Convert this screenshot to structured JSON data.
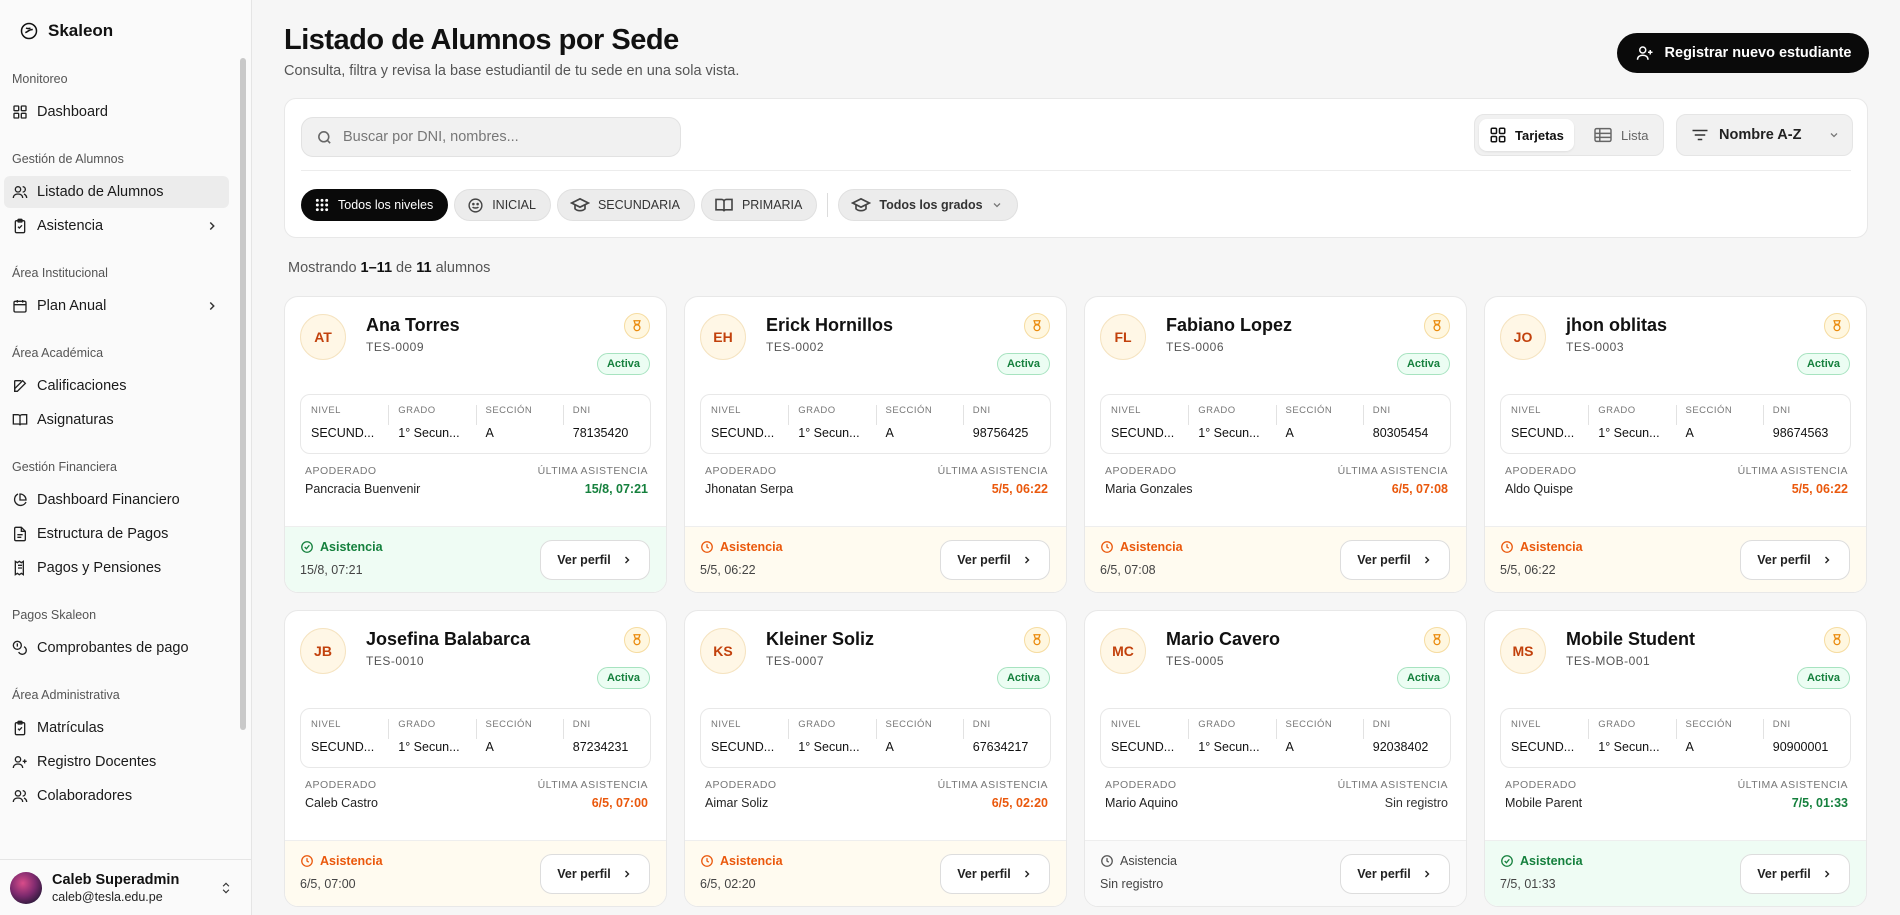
{
  "brand": {
    "name": "Skaleon"
  },
  "sidebar": {
    "groups": [
      {
        "title": "Monitoreo",
        "items": [
          {
            "label": "Dashboard",
            "icon": "grid-icon"
          }
        ]
      },
      {
        "title": "Gestión de Alumnos",
        "items": [
          {
            "label": "Listado de Alumnos",
            "icon": "users-icon",
            "active": true
          },
          {
            "label": "Asistencia",
            "icon": "clipboard-icon",
            "chevron": true
          }
        ]
      },
      {
        "title": "Área Institucional",
        "items": [
          {
            "label": "Plan Anual",
            "icon": "calendar-icon",
            "chevron": true
          }
        ]
      },
      {
        "title": "Área Académica",
        "items": [
          {
            "label": "Calificaciones",
            "icon": "edit-icon"
          },
          {
            "label": "Asignaturas",
            "icon": "book-icon"
          }
        ]
      },
      {
        "title": "Gestión Financiera",
        "items": [
          {
            "label": "Dashboard Financiero",
            "icon": "pie-icon"
          },
          {
            "label": "Estructura de Pagos",
            "icon": "file-icon"
          },
          {
            "label": "Pagos y Pensiones",
            "icon": "receipt-icon"
          }
        ]
      },
      {
        "title": "Pagos Skaleon",
        "items": [
          {
            "label": "Comprobantes de pago",
            "icon": "coins-icon"
          }
        ]
      },
      {
        "title": "Área Administrativa",
        "items": [
          {
            "label": "Matrículas",
            "icon": "clipboard-icon"
          },
          {
            "label": "Registro Docentes",
            "icon": "user-plus-icon"
          },
          {
            "label": "Colaboradores",
            "icon": "users-icon"
          }
        ]
      }
    ]
  },
  "user": {
    "name": "Caleb Superadmin",
    "email": "caleb@tesla.edu.pe"
  },
  "header": {
    "title": "Listado de Alumnos por Sede",
    "subtitle": "Consulta, filtra y revisa la base estudiantil de tu sede en una sola vista.",
    "register_label": "Registrar nuevo estudiante"
  },
  "toolbar": {
    "search_placeholder": "Buscar por DNI, nombres...",
    "view_cards": "Tarjetas",
    "view_list": "Lista",
    "sort_label": "Nombre A-Z",
    "filters": [
      "Todos los niveles",
      "INICIAL",
      "SECUNDARIA",
      "PRIMARIA"
    ],
    "grade_filter": "Todos los grados"
  },
  "showing": {
    "prefix": "Mostrando",
    "range": "1–11",
    "of": "de",
    "total": "11",
    "suffix": "alumnos"
  },
  "labels": {
    "nivel": "NIVEL",
    "grado": "GRADO",
    "seccion": "SECCIÓN",
    "dni": "DNI",
    "apoderado": "APODERADO",
    "ultima": "ÚLTIMA ASISTENCIA",
    "asistencia": "Asistencia",
    "ver_perfil": "Ver perfil",
    "activa": "Activa"
  },
  "students": [
    {
      "initials": "AT",
      "name": "Ana Torres",
      "code": "TES-0009",
      "status": "Activa",
      "nivel": "SECUND...",
      "grado": "1° Secun...",
      "seccion": "A",
      "dni": "78135420",
      "guardian": "Pancracia Buenvenir",
      "last": "15/8, 07:21",
      "tone": "green",
      "att_time": "15/8, 07:21"
    },
    {
      "initials": "EH",
      "name": "Erick Hornillos",
      "code": "TES-0002",
      "status": "Activa",
      "nivel": "SECUND...",
      "grado": "1° Secun...",
      "seccion": "A",
      "dni": "98756425",
      "guardian": "Jhonatan Serpa",
      "last": "5/5, 06:22",
      "tone": "orange",
      "att_time": "5/5, 06:22"
    },
    {
      "initials": "FL",
      "name": "Fabiano Lopez",
      "code": "TES-0006",
      "status": "Activa",
      "nivel": "SECUND...",
      "grado": "1° Secun...",
      "seccion": "A",
      "dni": "80305454",
      "guardian": "Maria Gonzales",
      "last": "6/5, 07:08",
      "tone": "orange",
      "att_time": "6/5, 07:08"
    },
    {
      "initials": "JO",
      "name": "jhon oblitas",
      "code": "TES-0003",
      "status": "Activa",
      "nivel": "SECUND...",
      "grado": "1° Secun...",
      "seccion": "A",
      "dni": "98674563",
      "guardian": "Aldo Quispe",
      "last": "5/5, 06:22",
      "tone": "orange",
      "att_time": "5/5, 06:22"
    },
    {
      "initials": "JB",
      "name": "Josefina Balabarca",
      "code": "TES-0010",
      "status": "Activa",
      "nivel": "SECUND...",
      "grado": "1° Secun...",
      "seccion": "A",
      "dni": "87234231",
      "guardian": "Caleb Castro",
      "last": "6/5, 07:00",
      "tone": "orange",
      "att_time": "6/5, 07:00"
    },
    {
      "initials": "KS",
      "name": "Kleiner Soliz",
      "code": "TES-0007",
      "status": "Activa",
      "nivel": "SECUND...",
      "grado": "1° Secun...",
      "seccion": "A",
      "dni": "67634217",
      "guardian": "Aimar Soliz",
      "last": "6/5, 02:20",
      "tone": "orange",
      "att_time": "6/5, 02:20"
    },
    {
      "initials": "MC",
      "name": "Mario Cavero",
      "code": "TES-0005",
      "status": "Activa",
      "nivel": "SECUND...",
      "grado": "1° Secun...",
      "seccion": "A",
      "dni": "92038402",
      "guardian": "Mario Aquino",
      "last": "Sin registro",
      "tone": "gray",
      "att_time": "Sin registro"
    },
    {
      "initials": "MS",
      "name": "Mobile Student",
      "code": "TES-MOB-001",
      "status": "Activa",
      "nivel": "SECUND...",
      "grado": "1° Secun...",
      "seccion": "A",
      "dni": "90900001",
      "guardian": "Mobile Parent",
      "last": "7/5, 01:33",
      "tone": "green",
      "att_time": "7/5, 01:33"
    }
  ],
  "colors": {
    "accent": "#0a0a0a",
    "green": "#15803d",
    "orange": "#ea580c"
  }
}
